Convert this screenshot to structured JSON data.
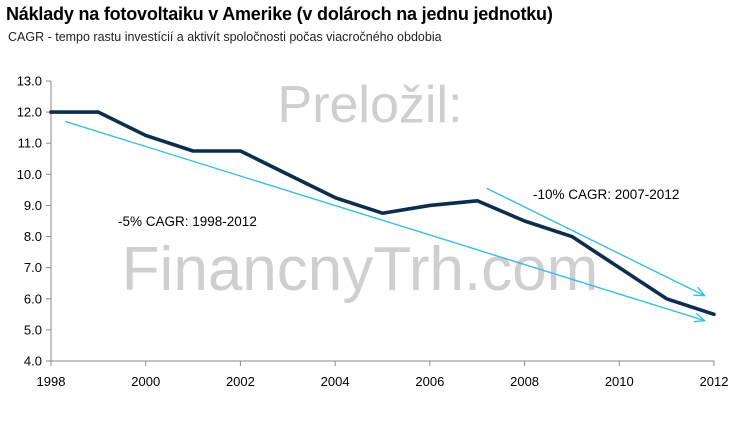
{
  "chart_data": {
    "type": "line",
    "title": "Náklady na fotovoltaiku v Amerike (v dolároch na jednu jednotku)",
    "subtitle": "CAGR - tempo rastu investícií a aktivít spoločnosti počas viacročného obdobia",
    "xlabel": "",
    "ylabel": "",
    "xlim": [
      1998,
      2012
    ],
    "ylim": [
      4.0,
      13.0
    ],
    "xticks": [
      "1998",
      "2000",
      "2002",
      "2004",
      "2006",
      "2008",
      "2010",
      "2012"
    ],
    "yticks": [
      "4.0",
      "5.0",
      "6.0",
      "7.0",
      "8.0",
      "9.0",
      "10.0",
      "11.0",
      "12.0",
      "13.0"
    ],
    "grid": false,
    "series": [
      {
        "x": [
          1998,
          1999,
          2000,
          2001,
          2002,
          2003,
          2004,
          2005,
          2006,
          2007,
          2008,
          2009,
          2010,
          2011,
          2012
        ],
        "values": [
          12.0,
          12.0,
          11.25,
          10.75,
          10.75,
          10.0,
          9.25,
          8.75,
          9.0,
          9.15,
          8.5,
          8.0,
          7.0,
          6.0,
          5.5
        ],
        "color": "#0d2d4e"
      }
    ],
    "trendlines": [
      {
        "label": "-5% CAGR: 1998-2012",
        "from": [
          1998.3,
          11.7
        ],
        "to": [
          2011.8,
          5.3
        ],
        "color": "#3bbde3"
      },
      {
        "label": "-10% CAGR: 2007-2012",
        "from": [
          2007.2,
          9.55
        ],
        "to": [
          2011.8,
          6.1
        ],
        "color": "#3bbde3"
      }
    ]
  },
  "watermark": {
    "line1": "Preložil:",
    "line2": "FinancnyTrh.com"
  }
}
